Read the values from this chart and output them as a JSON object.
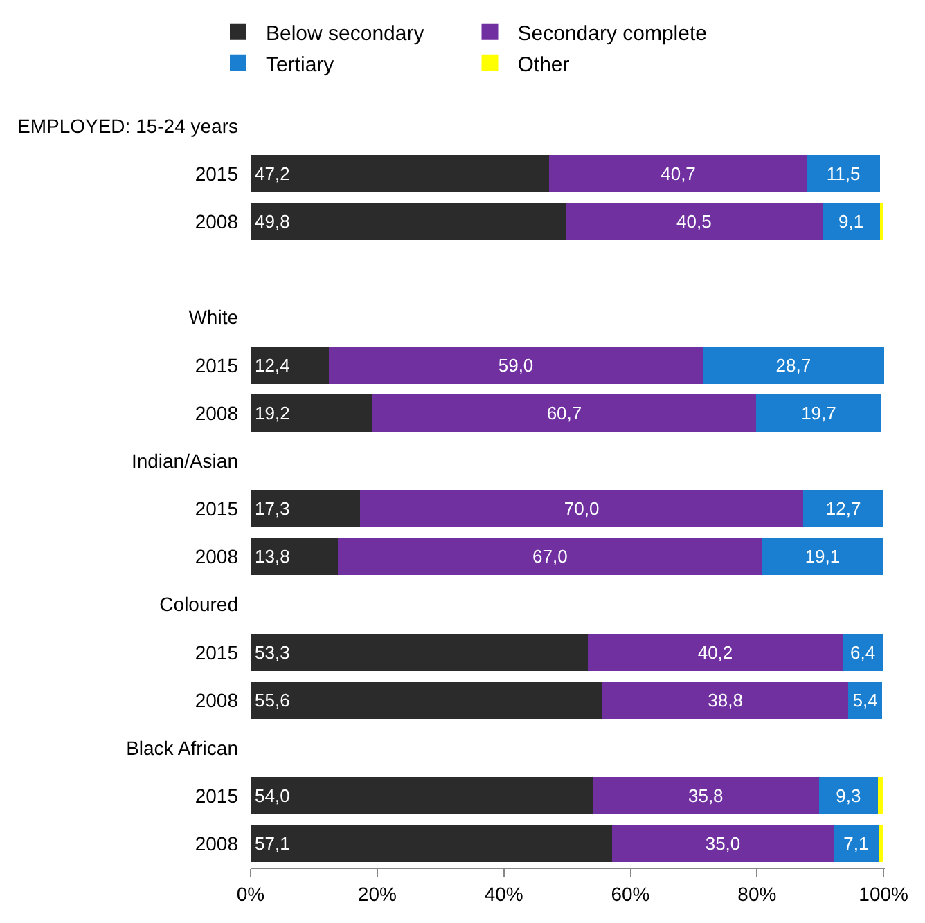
{
  "chart_data": {
    "type": "bar",
    "orientation": "horizontal",
    "stacked": true,
    "categories": [
      "EMPLOYED: 15-24 years",
      "2015",
      "2008",
      null,
      "White",
      "2015",
      "2008",
      "Indian/Asian",
      "2015",
      "2008",
      "Coloured",
      "2015",
      "2008",
      "Black African",
      "2015",
      "2008"
    ],
    "series": [
      {
        "name": "Below secondary",
        "color": "#2b2b2b",
        "values": [
          null,
          47.2,
          49.8,
          null,
          null,
          12.4,
          19.2,
          null,
          17.3,
          13.8,
          null,
          53.3,
          55.6,
          null,
          54.0,
          57.1
        ],
        "value_labels": [
          null,
          "47,2",
          "49,8",
          null,
          null,
          "12,4",
          "19,2",
          null,
          "17,3",
          "13,8",
          null,
          "53,3",
          "55,6",
          null,
          "54,0",
          "57,1"
        ]
      },
      {
        "name": "Secondary complete",
        "color": "#7030a0",
        "values": [
          null,
          40.7,
          40.5,
          null,
          null,
          59.0,
          60.7,
          null,
          70.0,
          67.0,
          null,
          40.2,
          38.8,
          null,
          35.8,
          35.0
        ],
        "value_labels": [
          null,
          "40,7",
          "40,5",
          null,
          null,
          "59,0",
          "60,7",
          null,
          "70,0",
          "67,0",
          null,
          "40,2",
          "38,8",
          null,
          "35,8",
          "35,0"
        ]
      },
      {
        "name": "Tertiary",
        "color": "#1a7fd0",
        "values": [
          null,
          11.5,
          9.1,
          null,
          null,
          28.7,
          19.7,
          null,
          12.7,
          19.1,
          null,
          6.4,
          5.4,
          null,
          9.3,
          7.1
        ],
        "value_labels": [
          null,
          "11,5",
          "9,1",
          null,
          null,
          "28,7",
          "19,7",
          null,
          "12,7",
          "19,1",
          null,
          "6,4",
          "5,4",
          null,
          "9,3",
          "7,1"
        ]
      },
      {
        "name": "Other",
        "color": "#ffff00",
        "values": [
          null,
          null,
          0.6,
          null,
          null,
          null,
          null,
          null,
          null,
          null,
          null,
          null,
          null,
          null,
          0.9,
          0.8
        ]
      }
    ],
    "xlim": [
      0,
      100.2
    ],
    "xticks": [
      {
        "value": 0,
        "label": "0%"
      },
      {
        "value": 20,
        "label": "20%"
      },
      {
        "value": 40,
        "label": "40%"
      },
      {
        "value": 60,
        "label": "60%"
      },
      {
        "value": 80,
        "label": "80%"
      },
      {
        "value": 100,
        "label": "100%"
      }
    ],
    "grid": false,
    "legend": "top"
  }
}
